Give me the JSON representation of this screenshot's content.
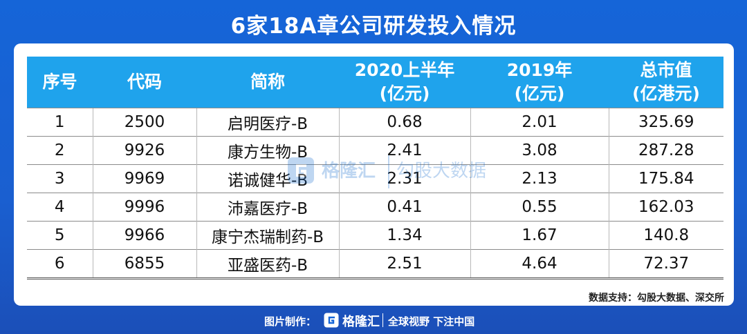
{
  "page": {
    "title": "6家18A章公司研发投入情况"
  },
  "table": {
    "headers": [
      {
        "line1": "序号",
        "line2": ""
      },
      {
        "line1": "代码",
        "line2": ""
      },
      {
        "line1": "简称",
        "line2": ""
      },
      {
        "line1": "2020上半年",
        "line2": "(亿元)"
      },
      {
        "line1": "2019年",
        "line2": "(亿元)"
      },
      {
        "line1": "总市值",
        "line2": "(亿港元)"
      }
    ],
    "rows": [
      {
        "idx": "1",
        "code": "2500",
        "name": "启明医疗-B",
        "h1_2020": "0.68",
        "y2019": "2.01",
        "mcap": "325.69"
      },
      {
        "idx": "2",
        "code": "9926",
        "name": "康方生物-B",
        "h1_2020": "2.41",
        "y2019": "3.08",
        "mcap": "287.28"
      },
      {
        "idx": "3",
        "code": "9969",
        "name": "诺诚健华-B",
        "h1_2020": "2.31",
        "y2019": "2.13",
        "mcap": "175.84"
      },
      {
        "idx": "4",
        "code": "9996",
        "name": "沛嘉医疗-B",
        "h1_2020": "0.41",
        "y2019": "0.55",
        "mcap": "162.03"
      },
      {
        "idx": "5",
        "code": "9966",
        "name": "康宁杰瑞制药-B",
        "h1_2020": "1.34",
        "y2019": "1.67",
        "mcap": "140.8"
      },
      {
        "idx": "6",
        "code": "6855",
        "name": "亚盛医药-B",
        "h1_2020": "2.51",
        "y2019": "4.64",
        "mcap": "72.37"
      }
    ]
  },
  "watermark": {
    "brand": "格隆汇",
    "brand2": "勾股大数据",
    "logo_icon": "gelonghui-logo-icon"
  },
  "source_note": "数据支持：勾股大数据、深交所",
  "footer": {
    "credit": "图片制作：",
    "brand": "格隆汇",
    "slogan": "全球视野 下注中国",
    "logo_icon": "gelonghui-logo-icon"
  },
  "colors": {
    "background": "#1565d8",
    "header_bg": "#1fa3ec",
    "card_bg": "#ffffff"
  }
}
